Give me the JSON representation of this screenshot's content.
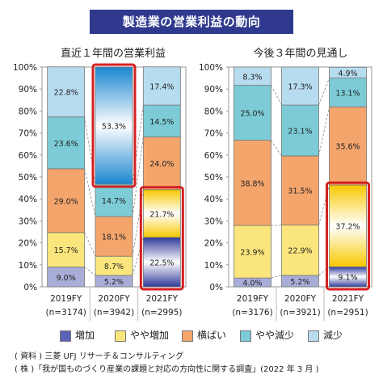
{
  "title": "製造業の営業利益の動向",
  "chart_data": [
    {
      "type": "bar",
      "stacked": true,
      "title": "直近１年間の営業利益",
      "categories": [
        "2019FY",
        "2020FY",
        "2021FY"
      ],
      "n_labels": [
        "(n=3174)",
        "(n=3942)",
        "(n=2995)"
      ],
      "series": [
        {
          "name": "増加",
          "values": [
            9.0,
            5.2,
            22.5
          ]
        },
        {
          "name": "やや増加",
          "values": [
            15.7,
            8.7,
            21.7
          ]
        },
        {
          "name": "横ばい",
          "values": [
            29.0,
            18.1,
            24.0
          ]
        },
        {
          "name": "やや減少",
          "values": [
            23.6,
            14.7,
            14.5
          ]
        },
        {
          "name": "減少",
          "values": [
            22.8,
            53.3,
            17.4
          ]
        }
      ],
      "yticks": [
        "0%",
        "10%",
        "20%",
        "30%",
        "40%",
        "50%",
        "60%",
        "70%",
        "80%",
        "90%",
        "100%"
      ],
      "ylim": [
        0,
        100
      ],
      "highlights": [
        {
          "category": "2020FY",
          "series": "減少"
        },
        {
          "category": "2021FY",
          "series": "増加"
        },
        {
          "category": "2021FY",
          "series": "やや増加"
        }
      ]
    },
    {
      "type": "bar",
      "stacked": true,
      "title": "今後３年間の見通し",
      "categories": [
        "2019FY",
        "2020FY",
        "2021FY"
      ],
      "n_labels": [
        "(n=3176)",
        "(n=3921)",
        "(n=2951)"
      ],
      "series": [
        {
          "name": "増加",
          "values": [
            4.0,
            5.2,
            9.1
          ]
        },
        {
          "name": "やや増加",
          "values": [
            23.9,
            22.9,
            37.2
          ]
        },
        {
          "name": "横ばい",
          "values": [
            38.8,
            31.5,
            35.6
          ]
        },
        {
          "name": "やや減少",
          "values": [
            25.0,
            23.1,
            13.1
          ]
        },
        {
          "name": "減少",
          "values": [
            8.3,
            17.3,
            4.9
          ]
        }
      ],
      "yticks": [
        "0%",
        "10%",
        "20%",
        "30%",
        "40%",
        "50%",
        "60%",
        "70%",
        "80%",
        "90%",
        "100%"
      ],
      "ylim": [
        0,
        100
      ],
      "highlights": [
        {
          "category": "2021FY",
          "series": "増加"
        },
        {
          "category": "2021FY",
          "series": "やや増加"
        }
      ]
    }
  ],
  "legend": {
    "placement": "bottom",
    "items": [
      {
        "label": "増加",
        "color": "#5a63b8"
      },
      {
        "label": "やや増加",
        "color": "#fbe67d"
      },
      {
        "label": "横ばい",
        "color": "#f3a56c"
      },
      {
        "label": "やや減少",
        "color": "#7ccbd6"
      },
      {
        "label": "減少",
        "color": "#b7dcef"
      }
    ]
  },
  "colors": {
    "title_bg": "#2f3a8f",
    "highlight_border": "#d42020",
    "flat_fill": [
      "#a9aed9",
      "#fbe67d",
      "#f3a56c",
      "#7ccbd6",
      "#b7dcef"
    ],
    "gradient_fill": [
      [
        "#ffffff",
        "#2f3a9a"
      ],
      [
        "#ffffff",
        "#f7c800"
      ],
      [
        "#ffffff",
        "#ec7a24"
      ],
      [
        "#ffffff",
        "#2aa3b8"
      ],
      [
        "#ffffff",
        "#1a86d0"
      ]
    ]
  },
  "source": [
    "( 資料 ) 三菱 UFJ リサーチ＆コンサルティング",
    "( 株 )「我が国ものづくり産業の課題と対応の方向性に関する調査」(2022 年 3 月 )"
  ]
}
